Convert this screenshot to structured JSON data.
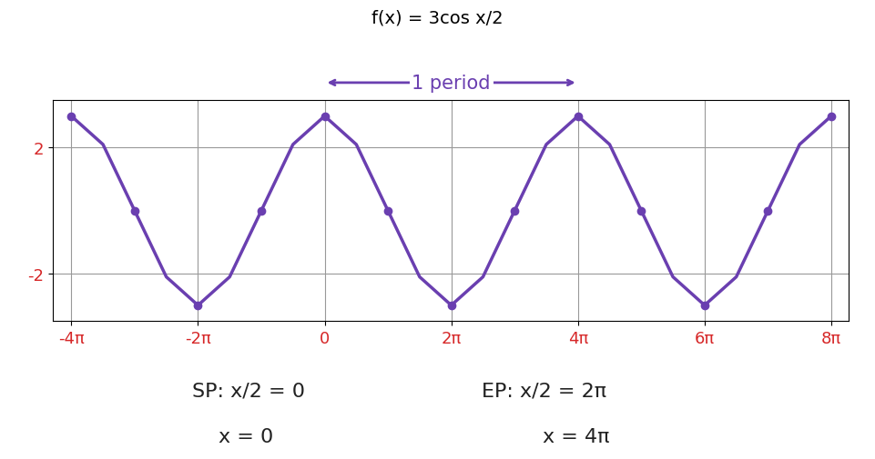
{
  "chart_data": {
    "type": "line",
    "title": "f(x) = 3cos x/2",
    "x": [
      -12.5664,
      -10.9956,
      -9.4248,
      -7.854,
      -6.2832,
      -4.7124,
      -3.1416,
      -1.5708,
      0,
      1.5708,
      3.1416,
      4.7124,
      6.2832,
      7.854,
      9.4248,
      10.9956,
      12.5664,
      14.1372,
      15.708,
      17.2788,
      18.8496,
      20.4204,
      21.9911,
      23.5619,
      25.1327
    ],
    "values": [
      3,
      2.1,
      0,
      -2.1,
      -3,
      -2.1,
      0,
      2.1,
      3,
      2.1,
      0,
      -2.1,
      -3,
      -2.1,
      0,
      2.1,
      3,
      2.1,
      0,
      -2.1,
      -3,
      -2.1,
      0,
      2.1,
      3
    ],
    "color": "#6a3fb0",
    "marker": "o",
    "xlim": [
      -13.5,
      26
    ],
    "xticks": [
      {
        "value": -12.5664,
        "label": "-4π"
      },
      {
        "value": -6.2832,
        "label": "-2π"
      },
      0,
      {
        "value": 6.2832,
        "label": "2π"
      },
      {
        "value": 12.5664,
        "label": "4π"
      },
      {
        "value": 18.8496,
        "label": "6π"
      },
      {
        "value": 25.1327,
        "label": "8π"
      }
    ],
    "ylim": [
      -3.5,
      3.5
    ],
    "yticks": [
      -2,
      2
    ],
    "grid": true,
    "annotations": [
      "1 period",
      "SP: x/2 = 0",
      "x = 0",
      "EP: x/2 = 2π",
      "x = 4π"
    ]
  }
}
